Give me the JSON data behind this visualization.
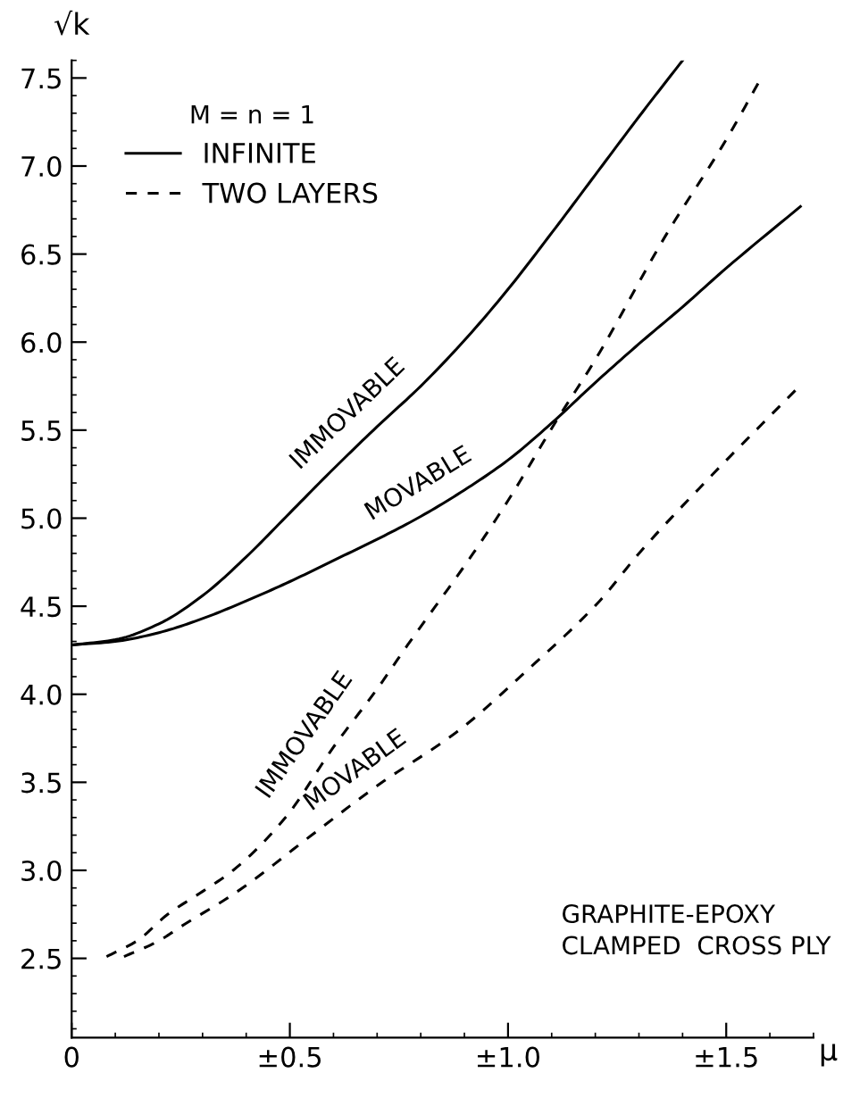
{
  "chart_data": {
    "type": "line",
    "xlabel": "μ",
    "ylabel": "√k",
    "legend_title": "M = n = 1",
    "legend": "top left",
    "grid": false,
    "marker": "none",
    "xlim": [
      0,
      1.7
    ],
    "ylim": [
      2.05,
      7.6
    ],
    "xticks": [
      0,
      {
        "value": 0.5,
        "label": "±0.5"
      },
      {
        "value": 1.0,
        "label": "±1.0"
      },
      {
        "value": 1.5,
        "label": "±1.5"
      }
    ],
    "yticks": [
      2.5,
      {
        "value": 3.0,
        "label": "3.0"
      },
      3.5,
      {
        "value": 4.0,
        "label": "4.0"
      },
      4.5,
      {
        "value": 5.0,
        "label": "5.0"
      },
      5.5,
      {
        "value": 6.0,
        "label": "6.0"
      },
      6.5,
      {
        "value": 7.0,
        "label": "7.0"
      },
      7.5
    ],
    "series": [
      {
        "name": "INFINITE",
        "color": "#000000",
        "line_style": "solid",
        "x": [
          0,
          0.1,
          0.2,
          0.3,
          0.4,
          0.5,
          0.6,
          0.7,
          0.8,
          0.9,
          1.0,
          1.1,
          1.2,
          1.3,
          1.4
        ],
        "values": [
          4.28,
          4.31,
          4.4,
          4.56,
          4.78,
          5.03,
          5.28,
          5.52,
          5.75,
          6.01,
          6.3,
          6.62,
          6.95,
          7.28,
          7.6
        ]
      },
      {
        "color": "#000000",
        "line_style": "solid",
        "x": [
          0,
          0.1,
          0.2,
          0.3,
          0.4,
          0.5,
          0.6,
          0.7,
          0.8,
          0.9,
          1.0,
          1.1,
          1.2,
          1.3,
          1.4,
          1.5,
          1.67
        ],
        "values": [
          4.28,
          4.3,
          4.35,
          4.43,
          4.53,
          4.64,
          4.76,
          4.88,
          5.01,
          5.16,
          5.33,
          5.54,
          5.77,
          5.99,
          6.2,
          6.42,
          6.77
        ]
      },
      {
        "name": "TWO LAYERS",
        "color": "#000000",
        "line_style": "dashed",
        "x": [
          0.08,
          0.15,
          0.22,
          0.3,
          0.37,
          0.49,
          0.6,
          0.7,
          0.77,
          0.92,
          1.0,
          1.11,
          1.2,
          1.36,
          1.5,
          1.58
        ],
        "values": [
          2.51,
          2.6,
          2.75,
          2.88,
          3.0,
          3.3,
          3.7,
          4.03,
          4.28,
          4.8,
          5.1,
          5.55,
          5.9,
          6.6,
          7.15,
          7.5
        ]
      },
      {
        "color": "#000000",
        "line_style": "dashed",
        "x": [
          0.12,
          0.2,
          0.25,
          0.38,
          0.55,
          0.7,
          0.89,
          1.05,
          1.21,
          1.3,
          1.45,
          1.66
        ],
        "values": [
          2.51,
          2.6,
          2.68,
          2.88,
          3.2,
          3.48,
          3.8,
          4.15,
          4.53,
          4.8,
          5.2,
          5.73
        ]
      }
    ],
    "annotations": [
      {
        "text": "IMMOVABLE",
        "x": 0.68,
        "y": 5.47
      },
      {
        "text": "MOVABLE",
        "x": 0.83,
        "y": 5.05
      },
      {
        "text": "IMMOVABLE",
        "x": 0.59,
        "y": 3.67
      },
      {
        "text": "MOVABLE",
        "x": 0.69,
        "y": 3.43
      },
      "GRAPHITE-EPOXY\nCLAMPED  CROSS PLY"
    ]
  }
}
